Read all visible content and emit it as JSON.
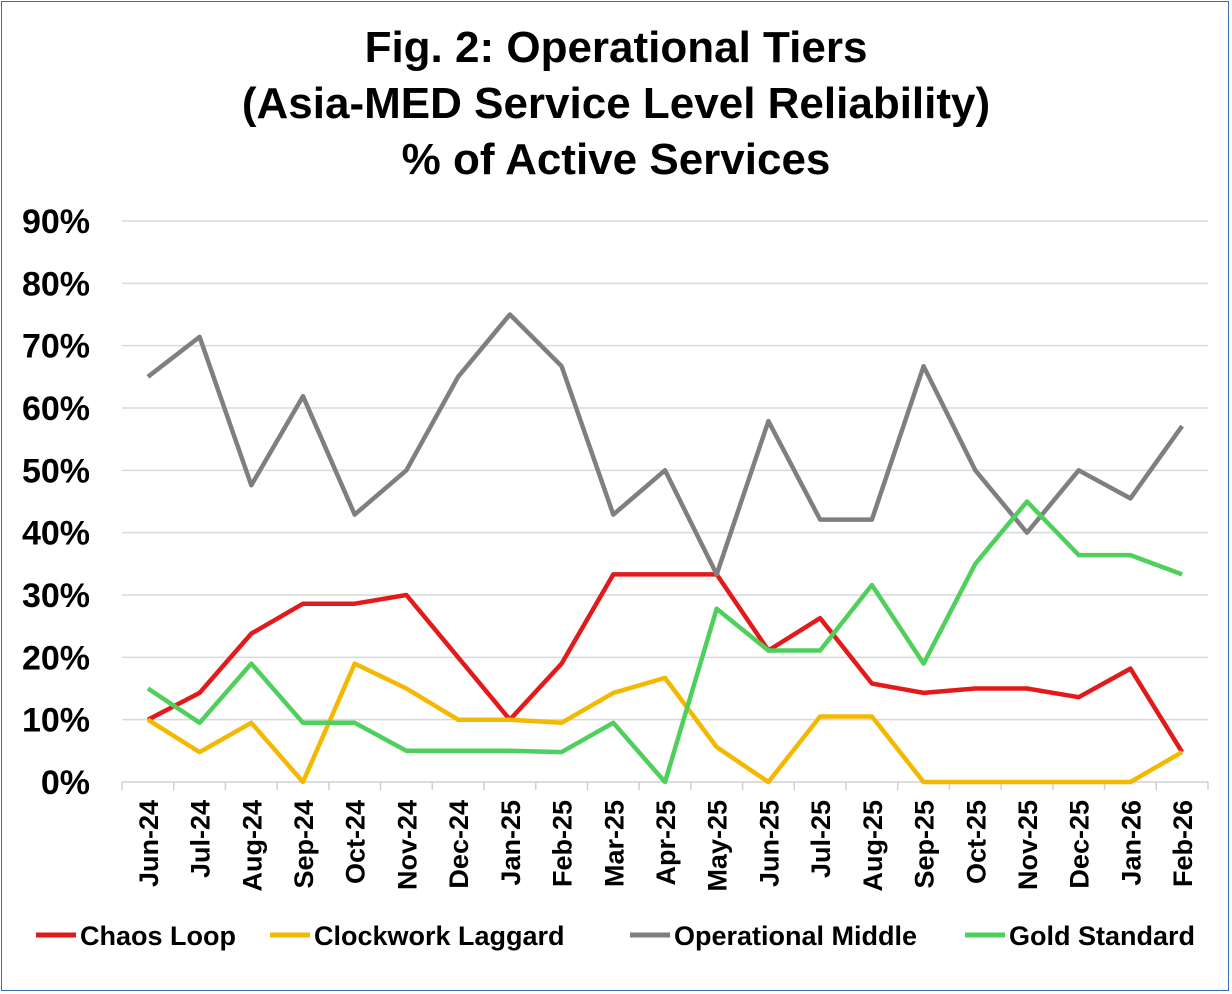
{
  "chart_data": {
    "type": "line",
    "title": [
      "Fig. 2: Operational Tiers",
      "(Asia-MED Service Level Reliability)",
      "% of Active Services"
    ],
    "xlabel": "",
    "ylabel": "",
    "ylim": [
      0,
      90
    ],
    "y_ticks": [
      "0%",
      "10%",
      "20%",
      "30%",
      "40%",
      "50%",
      "60%",
      "70%",
      "80%",
      "90%"
    ],
    "grid": true,
    "legend_position": "bottom",
    "categories": [
      "Jun-24",
      "Jul-24",
      "Aug-24",
      "Sep-24",
      "Oct-24",
      "Nov-24",
      "Dec-24",
      "Jan-25",
      "Feb-25",
      "Mar-25",
      "Apr-25",
      "May-25",
      "Jun-25",
      "Jul-25",
      "Aug-25",
      "Sep-25",
      "Oct-25",
      "Nov-25",
      "Dec-25",
      "Jan-26",
      "Feb-26"
    ],
    "series": [
      {
        "name": "Chaos Loop",
        "color": "#e31a1c",
        "values": [
          10,
          14.3,
          23.8,
          28.6,
          28.6,
          30,
          20,
          10,
          19,
          33.3,
          33.3,
          33.3,
          21.1,
          26.3,
          15.8,
          14.3,
          15,
          15,
          13.6,
          18.2,
          4.8
        ]
      },
      {
        "name": "Clockwork Laggard",
        "color": "#f5b800",
        "values": [
          10,
          4.8,
          9.5,
          0,
          19,
          15,
          10,
          10,
          9.5,
          14.3,
          16.7,
          5.6,
          0,
          10.5,
          10.5,
          0,
          0,
          0,
          0,
          0,
          4.8
        ]
      },
      {
        "name": "Operational Middle",
        "color": "#7f7f7f",
        "values": [
          65,
          71.4,
          47.6,
          61.9,
          42.9,
          50,
          65,
          75,
          66.7,
          42.9,
          50,
          33.3,
          57.9,
          42.1,
          42.1,
          66.7,
          50,
          40,
          50,
          45.5,
          57.1
        ]
      },
      {
        "name": "Gold Standard",
        "color": "#4fcf5c",
        "values": [
          15,
          9.5,
          19,
          9.5,
          9.5,
          5,
          5,
          5,
          4.8,
          9.5,
          0,
          27.8,
          21.1,
          21.1,
          31.6,
          19,
          35,
          45,
          36.4,
          36.4,
          33.3
        ]
      }
    ]
  }
}
